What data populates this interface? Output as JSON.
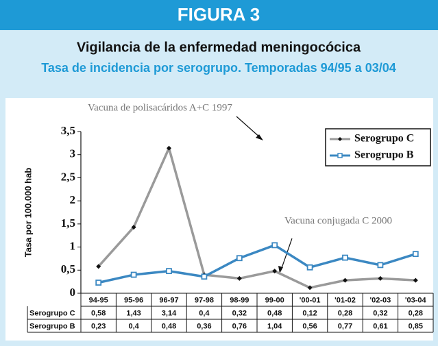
{
  "chart_data": {
    "type": "line",
    "figure_label": "FIGURA 3",
    "title": "Vigilancia de la enfermedad meningocócica",
    "subtitle": "Tasa de incidencia por serogrupo. Temporadas 94/95 a 03/04",
    "y_label": "Tasa por 100.000 hab",
    "annotations": [
      "Vacuna de polisacáridos  A+C 1997",
      "Vacuna conjugada  C 2000"
    ],
    "categories": [
      "94-95",
      "95-96",
      "96-97",
      "97-98",
      "98-99",
      "99-00",
      "'00-01",
      "'01-02",
      "'02-03",
      "'03-04"
    ],
    "series": [
      {
        "name": "Serogrupo C",
        "color": "#9a9a9a",
        "marker_color": "#111111",
        "values": [
          0.58,
          1.43,
          3.14,
          0.4,
          0.32,
          0.48,
          0.12,
          0.28,
          0.32,
          0.28
        ],
        "value_labels": [
          "0,58",
          "1,43",
          "3,14",
          "0,4",
          "0,32",
          "0,48",
          "0,12",
          "0,28",
          "0,32",
          "0,28"
        ]
      },
      {
        "name": "Serogrupo B",
        "color": "#3b88c2",
        "marker_color": "#3b88c2",
        "values": [
          0.23,
          0.4,
          0.48,
          0.36,
          0.76,
          1.04,
          0.56,
          0.77,
          0.61,
          0.85
        ],
        "value_labels": [
          "0,23",
          "0,4",
          "0,48",
          "0,36",
          "0,76",
          "1,04",
          "0,56",
          "0,77",
          "0,61",
          "0,85"
        ]
      }
    ],
    "ylim": [
      0,
      3.5
    ],
    "yticks": [
      0,
      {
        "value": 0.5,
        "label": "0,5"
      },
      1,
      {
        "value": 1.5,
        "label": "1,5"
      },
      2,
      {
        "value": 2.5,
        "label": "2,5"
      },
      3,
      {
        "value": 3.5,
        "label": "3,5"
      }
    ],
    "legend": "upper right"
  }
}
